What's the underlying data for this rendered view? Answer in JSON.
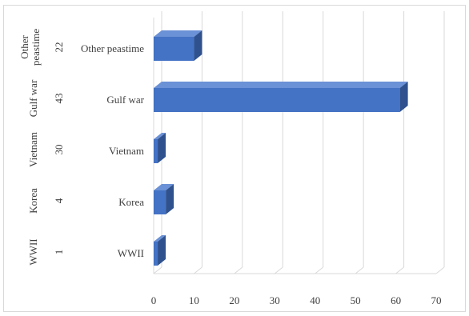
{
  "chart_data": {
    "type": "bar",
    "orientation": "horizontal",
    "style": "3d",
    "title": "",
    "xlabel": "",
    "ylabel": "",
    "xlim": [
      0,
      70
    ],
    "x_ticks": [
      "0",
      "10",
      "20",
      "30",
      "40",
      "50",
      "60",
      "70"
    ],
    "categories": [
      {
        "outer": "WWII",
        "code": "1",
        "inner": "WWII",
        "value": 1
      },
      {
        "outer": "Korea",
        "code": "4",
        "inner": "Korea",
        "value": 3
      },
      {
        "outer": "Vietnam",
        "code": "30",
        "inner": "Vietnam",
        "value": 1
      },
      {
        "outer": "Gulf war",
        "code": "43",
        "inner": "Gulf war",
        "value": 61
      },
      {
        "outer": "Other peastime",
        "code": "22",
        "inner": "Other peastime",
        "value": 10
      }
    ],
    "grid": true,
    "legend": "none",
    "colors": {
      "bar_front": "#4472c4",
      "bar_top": "#6b91d6",
      "bar_side": "#2f528f",
      "grid": "#d9d9d9",
      "text": "#404040"
    }
  }
}
